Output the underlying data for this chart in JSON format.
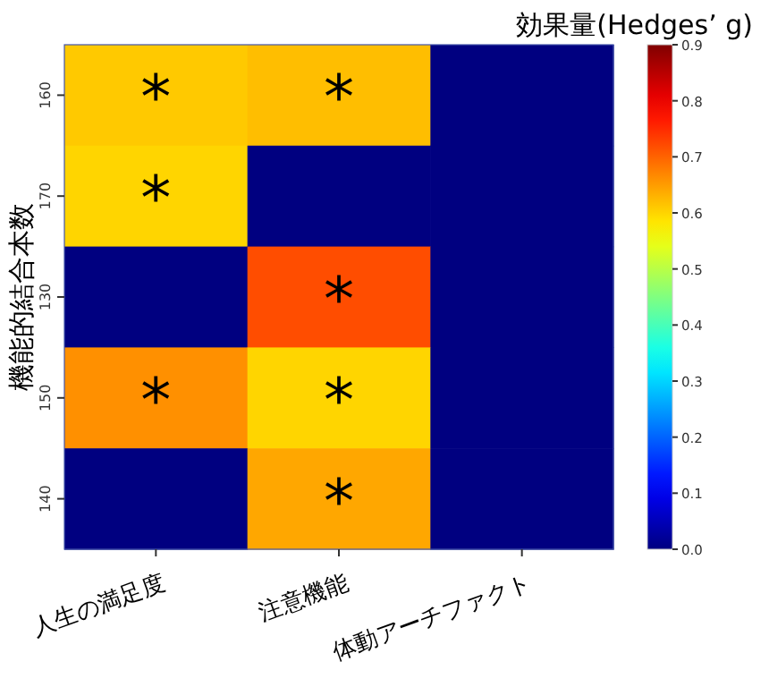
{
  "chart_data": {
    "type": "heatmap",
    "categories": [
      "人生の満足度",
      "注意機能",
      "体動アーチファクト"
    ],
    "y_categories": [
      "160",
      "170",
      "130",
      "150",
      "140"
    ],
    "ylabel": "機能的結合本数",
    "clabel": "効果量(Hedges’ g)",
    "cells": [
      [
        0.61,
        0.62,
        0
      ],
      [
        0.6,
        0,
        0
      ],
      [
        0,
        0.72,
        0
      ],
      [
        0.66,
        0.6,
        0
      ],
      [
        0,
        0.64,
        0
      ]
    ],
    "cell_labels": [
      [
        "*",
        "*",
        null
      ],
      [
        "*",
        null,
        null
      ],
      [
        null,
        "*",
        null
      ],
      [
        "*",
        "*",
        null
      ],
      [
        null,
        "*",
        null
      ]
    ],
    "clim": [
      0,
      0.9
    ],
    "cticks": [
      {
        "value": 0,
        "label": "0.0"
      },
      {
        "value": 0.1,
        "label": "0.1"
      },
      {
        "value": 0.2,
        "label": "0.2"
      },
      {
        "value": 0.3,
        "label": "0.3"
      },
      {
        "value": 0.4,
        "label": "0.4"
      },
      {
        "value": 0.5,
        "label": "0.5"
      },
      {
        "value": 0.6,
        "label": "0.6"
      },
      {
        "value": 0.7,
        "label": "0.7"
      },
      {
        "value": 0.8,
        "label": "0.8"
      },
      {
        "value": 0.9,
        "label": "0.9"
      }
    ]
  }
}
